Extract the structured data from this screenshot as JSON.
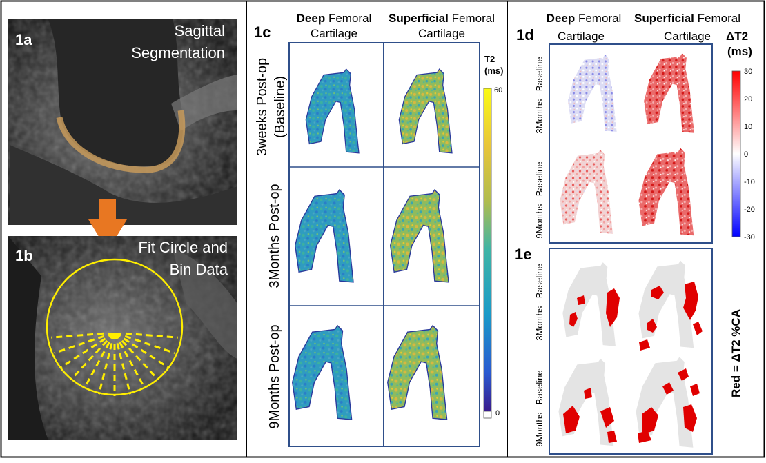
{
  "panel_1a": {
    "id": "1a",
    "caption_line1": "Sagittal",
    "caption_line2": "Segmentation"
  },
  "panel_1b": {
    "id": "1b",
    "caption_line1": "Fit Circle and",
    "caption_line2": "Bin Data"
  },
  "panel_1c": {
    "id": "1c",
    "col_deep_bold": "Deep",
    "col_deep_rest": "Femoral",
    "col_deep_line2": "Cartilage",
    "col_sup_bold": "Superficial",
    "col_sup_rest": "Femoral",
    "col_sup_line2": "Cartilage",
    "row1_line1": "3weeks Post-op",
    "row1_line2": "(Baseline)",
    "row2": "3Months Post-op",
    "row3": "9Months Post-op",
    "colorbar_title_line1": "T2",
    "colorbar_title_line2": "(ms)",
    "colorbar_max": "60",
    "colorbar_min": "0"
  },
  "panel_1d": {
    "id": "1d",
    "col_deep_bold": "Deep",
    "col_deep_rest": "Femoral",
    "col_deep_line2": "Cartilage",
    "col_sup_bold": "Superficial",
    "col_sup_rest": "Femoral",
    "col_sup_line2": "Cartilage",
    "row1": "3Months - Baseline",
    "row2": "9Months - Baseline",
    "colorbar_title_line1": "ΔT2",
    "colorbar_title_line2": "(ms)",
    "ticks": [
      "30",
      "20",
      "10",
      "0",
      "-10",
      "-20",
      "-30"
    ]
  },
  "panel_1e": {
    "id": "1e",
    "row1": "3Months - Baseline",
    "row2": "9Months - Baseline",
    "side_label": "Red = ΔT2 %CA"
  },
  "colors": {
    "border": "#2f4f8a",
    "highlight_red": "#e00000",
    "circle_yellow": "#ffee00",
    "arrow_orange": "#e87722",
    "mask_gray": "#e4e4e4"
  }
}
